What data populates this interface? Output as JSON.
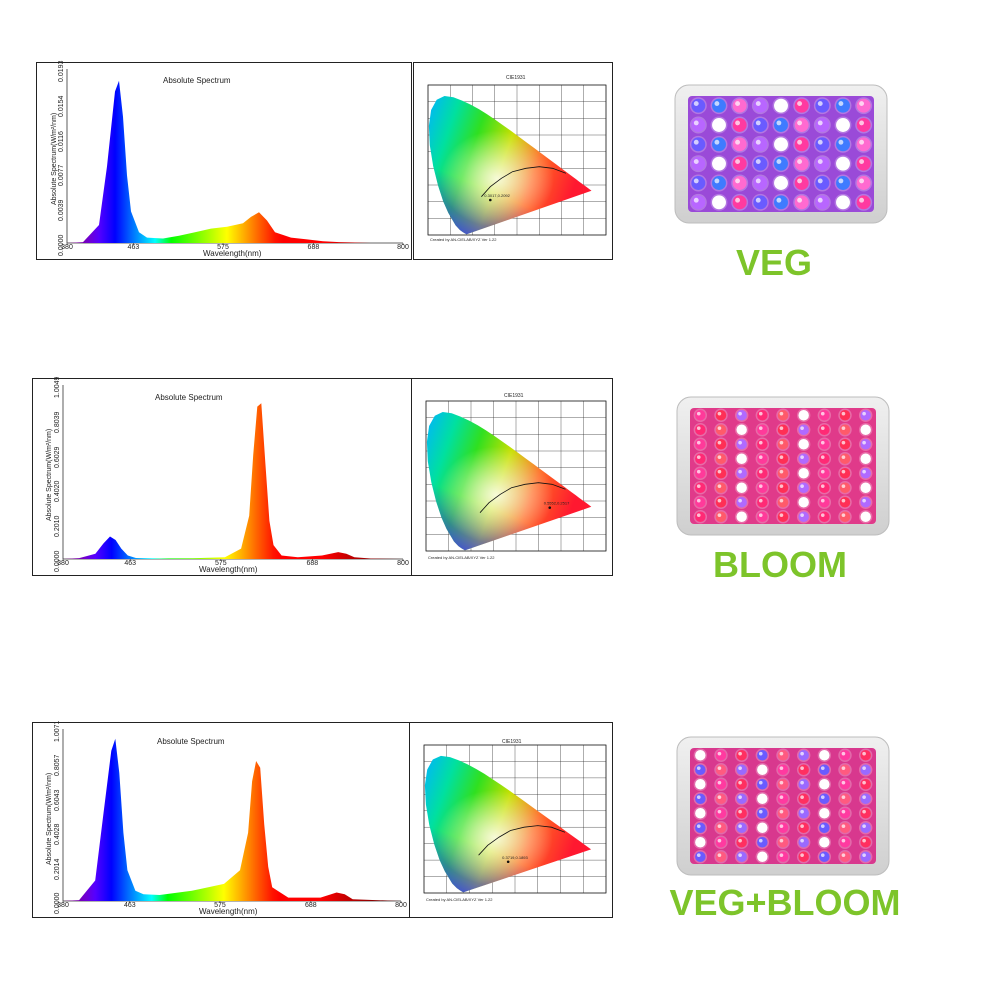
{
  "colors": {
    "label_green": "#7dc42a"
  },
  "rows": [
    {
      "mode_label": "VEG",
      "spectrum": {
        "title": "Absolute Spectrum",
        "ylabel": "Absolute Spectrum(W/m²/nm)",
        "xlabel": "Wavelength(nm)",
        "xticks": [
          "380",
          "463",
          "575",
          "688",
          "800"
        ],
        "yticks": [
          "0.0000",
          "0.0039",
          "0.0077",
          "0.0116",
          "0.0154",
          "0.0193"
        ]
      },
      "cie": {
        "title": "CIE1931",
        "foot": "Created by AN-CIELAB/XYZ Ver 1.22",
        "point_label": "0.3017,0.2092"
      },
      "panel_icon": "led-grow-light-panel"
    },
    {
      "mode_label": "BLOOM",
      "spectrum": {
        "title": "Absolute Spectrum",
        "ylabel": "Absolute Spectrum(W/m²/nm)",
        "xlabel": "Wavelength(nm)",
        "xticks": [
          "380",
          "463",
          "575",
          "688",
          "800"
        ],
        "yticks": [
          "0.0000",
          "0.2010",
          "0.4020",
          "0.6029",
          "0.8039",
          "1.0049"
        ]
      },
      "cie": {
        "title": "CIE1931",
        "foot": "Created by AN-CIELAB/XYZ Ver 1.22",
        "point_label": "0.5552,0.2517"
      },
      "panel_icon": "led-grow-light-panel"
    },
    {
      "mode_label": "VEG+BLOOM",
      "spectrum": {
        "title": "Absolute Spectrum",
        "ylabel": "Absolute Spectrum(W/m²/nm)",
        "xlabel": "Wavelength(nm)",
        "xticks": [
          "380",
          "463",
          "575",
          "688",
          "800"
        ],
        "yticks": [
          "0.0000",
          "0.2014",
          "0.4028",
          "0.6043",
          "0.8057",
          "1.0071"
        ]
      },
      "cie": {
        "title": "CIE1931",
        "foot": "Created by AN-CIELAB/XYZ Ver 1.22",
        "point_label": "0.3719,0.1893"
      },
      "panel_icon": "led-grow-light-panel"
    }
  ],
  "chart_data": [
    {
      "type": "area",
      "title": "Absolute Spectrum",
      "xlabel": "Wavelength(nm)",
      "ylabel": "Absolute Spectrum(W/m²/nm)",
      "xlim": [
        380,
        800
      ],
      "ylim": [
        0,
        0.0193
      ],
      "x": [
        380,
        400,
        420,
        430,
        440,
        445,
        450,
        455,
        460,
        470,
        480,
        500,
        520,
        540,
        560,
        580,
        600,
        610,
        620,
        630,
        640,
        660,
        680,
        700,
        720,
        740,
        760,
        800
      ],
      "y": [
        0,
        0.0001,
        0.002,
        0.0085,
        0.0168,
        0.018,
        0.014,
        0.0075,
        0.0035,
        0.0012,
        0.0006,
        0.0005,
        0.0008,
        0.0012,
        0.0016,
        0.0018,
        0.0022,
        0.0029,
        0.0034,
        0.0025,
        0.0012,
        0.0006,
        0.0004,
        0.0002,
        0.0001,
        5e-05,
        0,
        0
      ]
    },
    {
      "type": "area",
      "title": "Absolute Spectrum",
      "xlabel": "Wavelength(nm)",
      "ylabel": "Absolute Spectrum(W/m²/nm)",
      "xlim": [
        380,
        800
      ],
      "ylim": [
        0,
        1.0049
      ],
      "x": [
        380,
        400,
        420,
        430,
        438,
        445,
        452,
        460,
        470,
        500,
        540,
        580,
        600,
        610,
        615,
        620,
        625,
        630,
        635,
        640,
        650,
        670,
        700,
        720,
        730,
        740,
        760,
        800
      ],
      "y": [
        0,
        0.005,
        0.03,
        0.09,
        0.13,
        0.11,
        0.06,
        0.02,
        0.006,
        0.003,
        0.004,
        0.01,
        0.06,
        0.25,
        0.6,
        0.88,
        0.9,
        0.55,
        0.22,
        0.08,
        0.02,
        0.01,
        0.02,
        0.04,
        0.03,
        0.01,
        0.003,
        0
      ]
    },
    {
      "type": "area",
      "title": "Absolute Spectrum",
      "xlabel": "Wavelength(nm)",
      "ylabel": "Absolute Spectrum(W/m²/nm)",
      "xlim": [
        380,
        800
      ],
      "ylim": [
        0,
        1.0071
      ],
      "x": [
        380,
        400,
        420,
        430,
        440,
        445,
        450,
        455,
        460,
        470,
        480,
        500,
        540,
        580,
        600,
        610,
        615,
        620,
        625,
        630,
        635,
        640,
        660,
        700,
        720,
        730,
        740,
        800
      ],
      "y": [
        0,
        0.005,
        0.12,
        0.5,
        0.88,
        0.95,
        0.75,
        0.4,
        0.18,
        0.06,
        0.04,
        0.035,
        0.06,
        0.1,
        0.18,
        0.4,
        0.7,
        0.82,
        0.78,
        0.45,
        0.2,
        0.08,
        0.02,
        0.02,
        0.05,
        0.04,
        0.01,
        0
      ]
    }
  ]
}
